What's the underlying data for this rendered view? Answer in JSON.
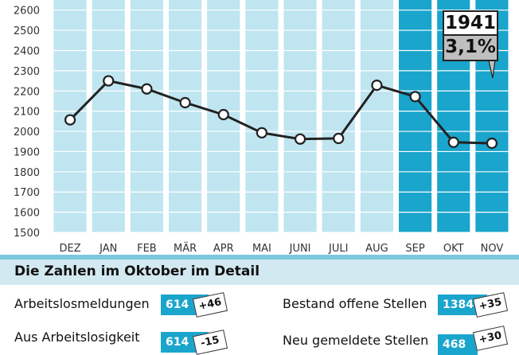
{
  "chart_data": {
    "type": "line",
    "categories": [
      "DEZ",
      "JAN",
      "FEB",
      "MÄR",
      "APR",
      "MAI",
      "JUNI",
      "JULI",
      "AUG",
      "SEP",
      "OKT",
      "NOV"
    ],
    "values": [
      2057,
      2250,
      2210,
      2142,
      2083,
      1993,
      1962,
      1965,
      2228,
      2172,
      1946,
      1941
    ],
    "highlighted_categories": [
      "SEP",
      "OKT",
      "NOV"
    ],
    "yticks": [
      1500,
      1600,
      1700,
      1800,
      1900,
      2000,
      2100,
      2200,
      2300,
      2400,
      2500,
      2600
    ],
    "ylim": [
      1500,
      2650
    ],
    "grid": true,
    "colors": {
      "bar": "#bfe5f0",
      "bar_highlight": "#1aa5cc",
      "line": "#222222",
      "marker_fill": "#ffffff"
    },
    "callout": {
      "value": "1941",
      "percent": "3,1%"
    }
  },
  "detail": {
    "title": "Die Zahlen im Oktober im Detail",
    "stats": [
      {
        "label": "Arbeitslosmeldungen",
        "value": "614",
        "delta": "+46"
      },
      {
        "label": "Bestand offene Stellen",
        "value": "1384",
        "delta": "+35"
      },
      {
        "label": "Aus Arbeitslosigkeit",
        "value": "614",
        "delta": "-15"
      },
      {
        "label": "Neu gemeldete Stellen",
        "value": "468",
        "delta": "+30"
      }
    ]
  }
}
